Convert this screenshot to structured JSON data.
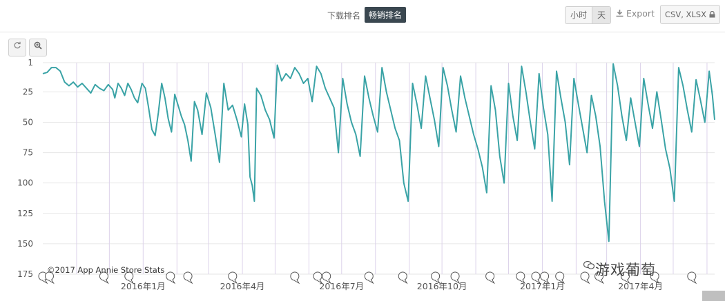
{
  "toolbar": {
    "rank_tabs": [
      "下载排名",
      "畅销排名"
    ],
    "granularity": [
      "小时",
      "天"
    ],
    "export_label": "Export",
    "csv_label": "CSV, XLSX"
  },
  "icons": {
    "reset": "reset-icon",
    "zoom": "zoom-icon",
    "lock": "lock-icon",
    "download": "download-icon",
    "event_marker": "speech-bubble-icon",
    "wechat": "wechat-icon"
  },
  "colors": {
    "line": "#3aa3a6",
    "grid": "#e6e6e6",
    "vgrid": "#dcd2ea",
    "active_tab": "#3a4750"
  },
  "copyright": "©2017 App Annie Store Stats",
  "watermark": "游戏葡萄",
  "chart_data": {
    "type": "line",
    "title": "",
    "xlabel": "",
    "ylabel": "",
    "y_reversed": true,
    "ylim": [
      1,
      175
    ],
    "yticks": [
      1,
      25,
      50,
      75,
      100,
      125,
      150,
      175
    ],
    "x_tick_labels": [
      "2016年1月",
      "2016年4月",
      "2016年7月",
      "2016年10月",
      "2017年1月",
      "2017年4月"
    ],
    "x_tick_dates": [
      "2016-01-01",
      "2016-04-01",
      "2016-07-01",
      "2016-10-01",
      "2017-01-01",
      "2017-04-01"
    ],
    "xlim": [
      "2015-10-01",
      "2017-06-08"
    ],
    "grid": true,
    "legend": "none",
    "series": [
      {
        "name": "",
        "points": [
          [
            "2015-10-01",
            10
          ],
          [
            "2015-10-05",
            9
          ],
          [
            "2015-10-09",
            5
          ],
          [
            "2015-10-13",
            5
          ],
          [
            "2015-10-17",
            8
          ],
          [
            "2015-10-21",
            17
          ],
          [
            "2015-10-25",
            20
          ],
          [
            "2015-10-29",
            17
          ],
          [
            "2015-11-02",
            21
          ],
          [
            "2015-11-06",
            18
          ],
          [
            "2015-11-10",
            22
          ],
          [
            "2015-11-14",
            26
          ],
          [
            "2015-11-18",
            19
          ],
          [
            "2015-11-22",
            22
          ],
          [
            "2015-11-26",
            24
          ],
          [
            "2015-11-30",
            19
          ],
          [
            "2015-12-04",
            23
          ],
          [
            "2015-12-06",
            30
          ],
          [
            "2015-12-09",
            18
          ],
          [
            "2015-12-12",
            22
          ],
          [
            "2015-12-15",
            28
          ],
          [
            "2015-12-18",
            18
          ],
          [
            "2015-12-21",
            23
          ],
          [
            "2015-12-24",
            30
          ],
          [
            "2015-12-27",
            34
          ],
          [
            "2015-12-31",
            18
          ],
          [
            "2016-01-03",
            22
          ],
          [
            "2016-01-06",
            38
          ],
          [
            "2016-01-09",
            56
          ],
          [
            "2016-01-12",
            61
          ],
          [
            "2016-01-15",
            42
          ],
          [
            "2016-01-18",
            18
          ],
          [
            "2016-01-21",
            30
          ],
          [
            "2016-01-24",
            47
          ],
          [
            "2016-01-27",
            58
          ],
          [
            "2016-01-30",
            27
          ],
          [
            "2016-02-02",
            36
          ],
          [
            "2016-02-05",
            45
          ],
          [
            "2016-02-08",
            52
          ],
          [
            "2016-02-11",
            65
          ],
          [
            "2016-02-14",
            82
          ],
          [
            "2016-02-17",
            33
          ],
          [
            "2016-02-20",
            40
          ],
          [
            "2016-02-24",
            60
          ],
          [
            "2016-02-28",
            26
          ],
          [
            "2016-03-03",
            38
          ],
          [
            "2016-03-07",
            60
          ],
          [
            "2016-03-11",
            83
          ],
          [
            "2016-03-15",
            18
          ],
          [
            "2016-03-19",
            40
          ],
          [
            "2016-03-23",
            36
          ],
          [
            "2016-03-27",
            48
          ],
          [
            "2016-03-31",
            62
          ],
          [
            "2016-04-03",
            35
          ],
          [
            "2016-04-06",
            52
          ],
          [
            "2016-04-08",
            95
          ],
          [
            "2016-04-10",
            102
          ],
          [
            "2016-04-12",
            115
          ],
          [
            "2016-04-14",
            22
          ],
          [
            "2016-04-18",
            28
          ],
          [
            "2016-04-22",
            40
          ],
          [
            "2016-04-26",
            48
          ],
          [
            "2016-04-30",
            63
          ],
          [
            "2016-05-03",
            3
          ],
          [
            "2016-05-07",
            16
          ],
          [
            "2016-05-11",
            10
          ],
          [
            "2016-05-15",
            14
          ],
          [
            "2016-05-19",
            5
          ],
          [
            "2016-05-23",
            10
          ],
          [
            "2016-05-27",
            18
          ],
          [
            "2016-05-31",
            14
          ],
          [
            "2016-06-04",
            33
          ],
          [
            "2016-06-08",
            4
          ],
          [
            "2016-06-12",
            10
          ],
          [
            "2016-06-16",
            22
          ],
          [
            "2016-06-20",
            30
          ],
          [
            "2016-06-24",
            38
          ],
          [
            "2016-06-28",
            75
          ],
          [
            "2016-07-02",
            14
          ],
          [
            "2016-07-06",
            35
          ],
          [
            "2016-07-10",
            50
          ],
          [
            "2016-07-14",
            60
          ],
          [
            "2016-07-18",
            78
          ],
          [
            "2016-07-22",
            12
          ],
          [
            "2016-07-26",
            30
          ],
          [
            "2016-07-30",
            45
          ],
          [
            "2016-08-03",
            58
          ],
          [
            "2016-08-07",
            5
          ],
          [
            "2016-08-11",
            25
          ],
          [
            "2016-08-15",
            40
          ],
          [
            "2016-08-19",
            55
          ],
          [
            "2016-08-23",
            65
          ],
          [
            "2016-08-27",
            100
          ],
          [
            "2016-08-31",
            115
          ],
          [
            "2016-09-04",
            18
          ],
          [
            "2016-09-08",
            35
          ],
          [
            "2016-09-12",
            55
          ],
          [
            "2016-09-16",
            12
          ],
          [
            "2016-09-20",
            30
          ],
          [
            "2016-09-24",
            48
          ],
          [
            "2016-09-28",
            70
          ],
          [
            "2016-10-02",
            5
          ],
          [
            "2016-10-06",
            20
          ],
          [
            "2016-10-10",
            40
          ],
          [
            "2016-10-14",
            58
          ],
          [
            "2016-10-18",
            12
          ],
          [
            "2016-10-22",
            30
          ],
          [
            "2016-10-26",
            45
          ],
          [
            "2016-10-30",
            60
          ],
          [
            "2016-11-03",
            72
          ],
          [
            "2016-11-07",
            87
          ],
          [
            "2016-11-11",
            108
          ],
          [
            "2016-11-15",
            20
          ],
          [
            "2016-11-19",
            40
          ],
          [
            "2016-11-23",
            78
          ],
          [
            "2016-11-27",
            100
          ],
          [
            "2016-12-01",
            18
          ],
          [
            "2016-12-05",
            45
          ],
          [
            "2016-12-09",
            65
          ],
          [
            "2016-12-13",
            4
          ],
          [
            "2016-12-17",
            25
          ],
          [
            "2016-12-21",
            50
          ],
          [
            "2016-12-25",
            72
          ],
          [
            "2016-12-29",
            10
          ],
          [
            "2017-01-02",
            38
          ],
          [
            "2017-01-06",
            60
          ],
          [
            "2017-01-10",
            115
          ],
          [
            "2017-01-14",
            8
          ],
          [
            "2017-01-18",
            30
          ],
          [
            "2017-01-22",
            50
          ],
          [
            "2017-01-26",
            85
          ],
          [
            "2017-01-30",
            14
          ],
          [
            "2017-02-03",
            35
          ],
          [
            "2017-02-07",
            55
          ],
          [
            "2017-02-11",
            75
          ],
          [
            "2017-02-15",
            28
          ],
          [
            "2017-02-19",
            45
          ],
          [
            "2017-02-23",
            70
          ],
          [
            "2017-02-27",
            115
          ],
          [
            "2017-03-03",
            148
          ],
          [
            "2017-03-07",
            2
          ],
          [
            "2017-03-11",
            20
          ],
          [
            "2017-03-15",
            45
          ],
          [
            "2017-03-19",
            65
          ],
          [
            "2017-03-23",
            30
          ],
          [
            "2017-03-27",
            50
          ],
          [
            "2017-03-31",
            70
          ],
          [
            "2017-04-04",
            14
          ],
          [
            "2017-04-08",
            35
          ],
          [
            "2017-04-12",
            55
          ],
          [
            "2017-04-16",
            25
          ],
          [
            "2017-04-20",
            48
          ],
          [
            "2017-04-24",
            72
          ],
          [
            "2017-04-28",
            88
          ],
          [
            "2017-05-02",
            115
          ],
          [
            "2017-05-06",
            5
          ],
          [
            "2017-05-10",
            20
          ],
          [
            "2017-05-14",
            40
          ],
          [
            "2017-05-18",
            58
          ],
          [
            "2017-05-22",
            15
          ],
          [
            "2017-05-26",
            32
          ],
          [
            "2017-05-30",
            50
          ],
          [
            "2017-06-03",
            8
          ],
          [
            "2017-06-06",
            28
          ],
          [
            "2017-06-08",
            48
          ]
        ]
      }
    ]
  }
}
